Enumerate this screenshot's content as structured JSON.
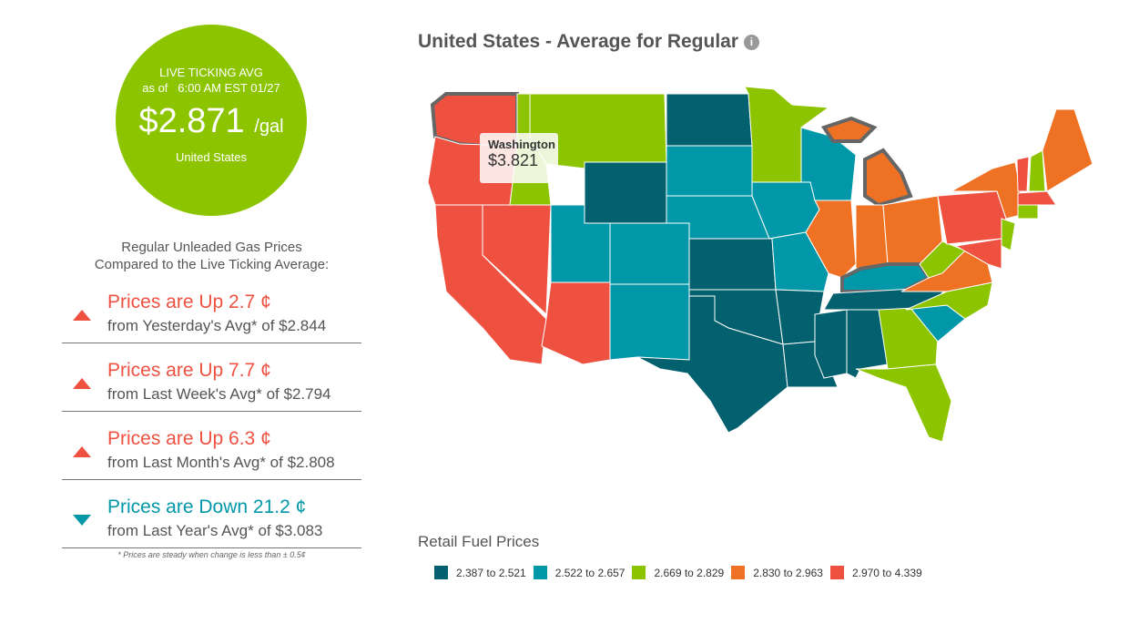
{
  "live": {
    "label": "LIVE TICKING AVG",
    "asof": "as of   6:00 AM EST 01/27",
    "price": "$2.871",
    "unit": "/gal",
    "region": "United States"
  },
  "compare_heading": [
    "Regular Unleaded Gas Prices",
    "Compared to the Live Ticking Average:"
  ],
  "comparisons": [
    {
      "direction": "up",
      "title": "Prices are Up 2.7 ¢",
      "sub": "from Yesterday's Avg* of $2.844"
    },
    {
      "direction": "up",
      "title": "Prices are Up 7.7 ¢",
      "sub": "from Last Week's Avg* of $2.794"
    },
    {
      "direction": "up",
      "title": "Prices are Up 6.3 ¢",
      "sub": "from Last Month's Avg* of $2.808"
    },
    {
      "direction": "down",
      "title": "Prices are Down 21.2 ¢",
      "sub": "from Last Year's Avg* of $3.083"
    }
  ],
  "note": "* Prices are steady when change is less than ± 0.5¢",
  "map": {
    "title": "United States - Average for Regular",
    "info_icon": "info-icon",
    "tooltip": {
      "state": "Washington",
      "price": "$3.821"
    },
    "legend_title": "Retail Fuel Prices",
    "legend": [
      {
        "label": "2.387 to 2.521",
        "color": "#03606f"
      },
      {
        "label": "2.522 to 2.657",
        "color": "#0098a8"
      },
      {
        "label": "2.669 to 2.829",
        "color": "#8dc400"
      },
      {
        "label": "2.830 to 2.963",
        "color": "#ee7124"
      },
      {
        "label": "2.970 to 4.339",
        "color": "#ef5140"
      }
    ],
    "state_bins": {
      "WA": 4,
      "OR": 4,
      "CA": 4,
      "NV": 4,
      "AZ": 4,
      "ID": 2,
      "MT": 2,
      "WY": 0,
      "UT": 1,
      "CO": 1,
      "NM": 1,
      "ND": 0,
      "SD": 1,
      "NE": 1,
      "KS": 0,
      "OK": 0,
      "TX": 0,
      "MN": 2,
      "IA": 1,
      "MO": 1,
      "AR": 0,
      "LA": 0,
      "WI": 1,
      "IL": 3,
      "MI": 3,
      "IN": 3,
      "OH": 3,
      "KY": 1,
      "TN": 0,
      "MS": 0,
      "AL": 0,
      "GA": 2,
      "FL": 2,
      "SC": 1,
      "NC": 2,
      "VA": 3,
      "WV": 2,
      "PA": 4,
      "NY": 3,
      "NJ": 2,
      "MD": 4,
      "VT": 4,
      "NH": 2,
      "ME": 3,
      "MA": 4,
      "CT": 2
    }
  }
}
